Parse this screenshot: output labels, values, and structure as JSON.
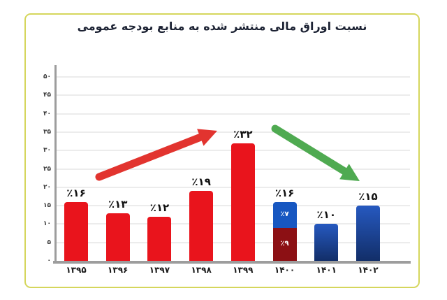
{
  "chart_data": {
    "type": "bar",
    "title": "نسبت اوراق مالی منتشر شده به منابع بودجه عمومی",
    "ylim": [
      0,
      50
    ],
    "grid": true,
    "y_ticks": [
      {
        "value": 50,
        "label": "۵۰"
      },
      {
        "value": 45,
        "label": "۴۵"
      },
      {
        "value": 40,
        "label": "۴۰"
      },
      {
        "value": 35,
        "label": "۳۵"
      },
      {
        "value": 30,
        "label": "۳۰"
      },
      {
        "value": 25,
        "label": "۲۵"
      },
      {
        "value": 20,
        "label": "۲۰"
      },
      {
        "value": 15,
        "label": "۱۵"
      },
      {
        "value": 10,
        "label": "۱۰"
      },
      {
        "value": 5,
        "label": "۵"
      },
      {
        "value": 0,
        "label": "۰"
      }
    ],
    "bars": [
      {
        "year": "۱۳۹۵",
        "value": 16,
        "label": "٪۱۶",
        "color_key": "red"
      },
      {
        "year": "۱۳۹۶",
        "value": 13,
        "label": "٪۱۳",
        "color_key": "red"
      },
      {
        "year": "۱۳۹۷",
        "value": 12,
        "label": "٪۱۲",
        "color_key": "red"
      },
      {
        "year": "۱۳۹۸",
        "value": 19,
        "label": "٪۱۹",
        "color_key": "red"
      },
      {
        "year": "۱۳۹۹",
        "value": 32,
        "label": "٪۳۲",
        "color_key": "red"
      },
      {
        "year": "۱۴۰۰",
        "value": 16,
        "label": "٪۱۶",
        "color_key": "stacked",
        "segments": [
          {
            "value": 9,
            "label": "٪۹",
            "color_key": "darkred"
          },
          {
            "value": 7,
            "label": "٪۷",
            "color_key": "blue"
          }
        ]
      },
      {
        "year": "۱۴۰۱",
        "value": 10,
        "label": "٪۱۰",
        "color_key": "navy"
      },
      {
        "year": "۱۴۰۲",
        "value": 15,
        "label": "٪۱۵",
        "color_key": "navy"
      }
    ],
    "annotations": [
      {
        "type": "arrow",
        "trend": "rising",
        "color": "#e2342f"
      },
      {
        "type": "arrow",
        "trend": "falling",
        "color": "#4faa51"
      }
    ]
  },
  "colors": {
    "red": "#e9141c",
    "darkred": "#8c1014",
    "blue": "#1757c1",
    "navy_top": "#2659c0",
    "navy_bottom": "#122e68",
    "axis": "#9d9d9d",
    "grid": "#ececec",
    "card_border": "#d5d65c",
    "title_text": "#1c2233",
    "label_text": "#111111",
    "arrow_up": "#e2342f",
    "arrow_down": "#4faa51"
  }
}
